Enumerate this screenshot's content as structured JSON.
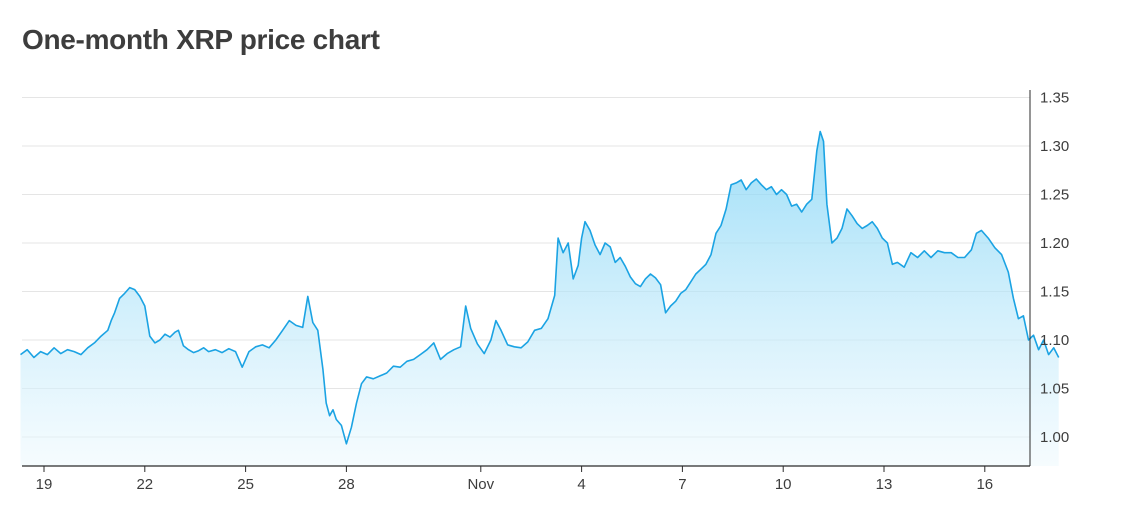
{
  "title": "One-month XRP price chart",
  "colors": {
    "line": "#1ba3e3",
    "fill_top": "#7dd3f5",
    "fill_bottom": "#eef9fe",
    "grid": "#e5e5e5",
    "axis": "#2b2b2b"
  },
  "chart_data": {
    "type": "area",
    "title": "One-month XRP price chart",
    "xlabel": "",
    "ylabel": "",
    "ylim": [
      0.97,
      1.365
    ],
    "y_ticks": [
      "1.00",
      "1.05",
      "1.10",
      "1.15",
      "1.20",
      "1.25",
      "1.30",
      "1.35"
    ],
    "x_ticks": [
      {
        "label": "19",
        "day": 0
      },
      {
        "label": "22",
        "day": 3
      },
      {
        "label": "25",
        "day": 6
      },
      {
        "label": "28",
        "day": 9
      },
      {
        "label": "Nov",
        "day": 13
      },
      {
        "label": "4",
        "day": 16
      },
      {
        "label": "7",
        "day": 19
      },
      {
        "label": "10",
        "day": 22
      },
      {
        "label": "13",
        "day": 25
      },
      {
        "label": "16",
        "day": 28
      }
    ],
    "grid": true,
    "series": [
      {
        "values": [
          [
            -0.7,
            1.085
          ],
          [
            -0.5,
            1.09
          ],
          [
            -0.3,
            1.082
          ],
          [
            -0.1,
            1.088
          ],
          [
            0.1,
            1.085
          ],
          [
            0.3,
            1.092
          ],
          [
            0.5,
            1.086
          ],
          [
            0.7,
            1.09
          ],
          [
            0.9,
            1.088
          ],
          [
            1.1,
            1.085
          ],
          [
            1.3,
            1.092
          ],
          [
            1.5,
            1.097
          ],
          [
            1.7,
            1.104
          ],
          [
            1.9,
            1.11
          ],
          [
            2.0,
            1.12
          ],
          [
            2.1,
            1.128
          ],
          [
            2.25,
            1.143
          ],
          [
            2.4,
            1.148
          ],
          [
            2.55,
            1.154
          ],
          [
            2.7,
            1.152
          ],
          [
            2.85,
            1.145
          ],
          [
            3.0,
            1.135
          ],
          [
            3.15,
            1.104
          ],
          [
            3.3,
            1.097
          ],
          [
            3.45,
            1.1
          ],
          [
            3.6,
            1.106
          ],
          [
            3.75,
            1.103
          ],
          [
            3.9,
            1.108
          ],
          [
            4.0,
            1.11
          ],
          [
            4.15,
            1.094
          ],
          [
            4.3,
            1.09
          ],
          [
            4.45,
            1.087
          ],
          [
            4.6,
            1.089
          ],
          [
            4.75,
            1.092
          ],
          [
            4.9,
            1.088
          ],
          [
            5.1,
            1.09
          ],
          [
            5.3,
            1.087
          ],
          [
            5.5,
            1.091
          ],
          [
            5.7,
            1.088
          ],
          [
            5.9,
            1.072
          ],
          [
            6.1,
            1.088
          ],
          [
            6.3,
            1.093
          ],
          [
            6.5,
            1.095
          ],
          [
            6.7,
            1.092
          ],
          [
            6.9,
            1.1
          ],
          [
            7.1,
            1.11
          ],
          [
            7.3,
            1.12
          ],
          [
            7.5,
            1.115
          ],
          [
            7.7,
            1.113
          ],
          [
            7.85,
            1.145
          ],
          [
            8.0,
            1.118
          ],
          [
            8.15,
            1.11
          ],
          [
            8.3,
            1.07
          ],
          [
            8.4,
            1.035
          ],
          [
            8.5,
            1.022
          ],
          [
            8.6,
            1.028
          ],
          [
            8.7,
            1.018
          ],
          [
            8.85,
            1.012
          ],
          [
            9.0,
            0.993
          ],
          [
            9.15,
            1.01
          ],
          [
            9.3,
            1.035
          ],
          [
            9.45,
            1.055
          ],
          [
            9.6,
            1.062
          ],
          [
            9.8,
            1.06
          ],
          [
            10.0,
            1.063
          ],
          [
            10.2,
            1.066
          ],
          [
            10.4,
            1.073
          ],
          [
            10.6,
            1.072
          ],
          [
            10.8,
            1.078
          ],
          [
            11.0,
            1.08
          ],
          [
            11.2,
            1.085
          ],
          [
            11.4,
            1.09
          ],
          [
            11.6,
            1.097
          ],
          [
            11.8,
            1.08
          ],
          [
            12.0,
            1.086
          ],
          [
            12.2,
            1.09
          ],
          [
            12.4,
            1.093
          ],
          [
            12.55,
            1.135
          ],
          [
            12.7,
            1.112
          ],
          [
            12.9,
            1.096
          ],
          [
            13.1,
            1.086
          ],
          [
            13.3,
            1.1
          ],
          [
            13.45,
            1.12
          ],
          [
            13.6,
            1.11
          ],
          [
            13.8,
            1.095
          ],
          [
            14.0,
            1.093
          ],
          [
            14.2,
            1.092
          ],
          [
            14.4,
            1.098
          ],
          [
            14.6,
            1.11
          ],
          [
            14.8,
            1.112
          ],
          [
            15.0,
            1.122
          ],
          [
            15.2,
            1.146
          ],
          [
            15.3,
            1.205
          ],
          [
            15.45,
            1.19
          ],
          [
            15.6,
            1.2
          ],
          [
            15.75,
            1.163
          ],
          [
            15.9,
            1.177
          ],
          [
            16.0,
            1.205
          ],
          [
            16.1,
            1.222
          ],
          [
            16.25,
            1.213
          ],
          [
            16.4,
            1.198
          ],
          [
            16.55,
            1.188
          ],
          [
            16.7,
            1.2
          ],
          [
            16.85,
            1.196
          ],
          [
            17.0,
            1.18
          ],
          [
            17.15,
            1.185
          ],
          [
            17.3,
            1.176
          ],
          [
            17.45,
            1.165
          ],
          [
            17.6,
            1.158
          ],
          [
            17.75,
            1.155
          ],
          [
            17.9,
            1.163
          ],
          [
            18.05,
            1.168
          ],
          [
            18.2,
            1.164
          ],
          [
            18.35,
            1.157
          ],
          [
            18.5,
            1.128
          ],
          [
            18.65,
            1.135
          ],
          [
            18.8,
            1.14
          ],
          [
            18.95,
            1.148
          ],
          [
            19.1,
            1.152
          ],
          [
            19.25,
            1.16
          ],
          [
            19.4,
            1.168
          ],
          [
            19.55,
            1.173
          ],
          [
            19.7,
            1.178
          ],
          [
            19.85,
            1.188
          ],
          [
            20.0,
            1.21
          ],
          [
            20.15,
            1.218
          ],
          [
            20.3,
            1.235
          ],
          [
            20.45,
            1.26
          ],
          [
            20.6,
            1.262
          ],
          [
            20.75,
            1.265
          ],
          [
            20.9,
            1.255
          ],
          [
            21.05,
            1.262
          ],
          [
            21.2,
            1.266
          ],
          [
            21.35,
            1.26
          ],
          [
            21.5,
            1.255
          ],
          [
            21.65,
            1.258
          ],
          [
            21.8,
            1.25
          ],
          [
            21.95,
            1.255
          ],
          [
            22.1,
            1.25
          ],
          [
            22.25,
            1.238
          ],
          [
            22.4,
            1.24
          ],
          [
            22.55,
            1.232
          ],
          [
            22.7,
            1.24
          ],
          [
            22.85,
            1.245
          ],
          [
            23.0,
            1.295
          ],
          [
            23.1,
            1.315
          ],
          [
            23.2,
            1.305
          ],
          [
            23.3,
            1.24
          ],
          [
            23.45,
            1.2
          ],
          [
            23.6,
            1.205
          ],
          [
            23.75,
            1.215
          ],
          [
            23.9,
            1.235
          ],
          [
            24.05,
            1.228
          ],
          [
            24.2,
            1.22
          ],
          [
            24.35,
            1.215
          ],
          [
            24.5,
            1.218
          ],
          [
            24.65,
            1.222
          ],
          [
            24.8,
            1.215
          ],
          [
            24.95,
            1.205
          ],
          [
            25.1,
            1.2
          ],
          [
            25.25,
            1.178
          ],
          [
            25.4,
            1.18
          ],
          [
            25.6,
            1.175
          ],
          [
            25.8,
            1.19
          ],
          [
            26.0,
            1.185
          ],
          [
            26.2,
            1.192
          ],
          [
            26.4,
            1.185
          ],
          [
            26.6,
            1.192
          ],
          [
            26.8,
            1.19
          ],
          [
            27.0,
            1.19
          ],
          [
            27.2,
            1.185
          ],
          [
            27.4,
            1.185
          ],
          [
            27.6,
            1.193
          ],
          [
            27.75,
            1.21
          ],
          [
            27.9,
            1.213
          ],
          [
            28.1,
            1.205
          ],
          [
            28.3,
            1.195
          ],
          [
            28.5,
            1.188
          ],
          [
            28.7,
            1.17
          ],
          [
            28.85,
            1.143
          ],
          [
            29.0,
            1.122
          ],
          [
            29.15,
            1.125
          ],
          [
            29.3,
            1.1
          ],
          [
            29.45,
            1.105
          ],
          [
            29.6,
            1.09
          ],
          [
            29.75,
            1.1
          ],
          [
            29.9,
            1.085
          ],
          [
            30.05,
            1.092
          ],
          [
            30.2,
            1.082
          ]
        ]
      }
    ]
  }
}
